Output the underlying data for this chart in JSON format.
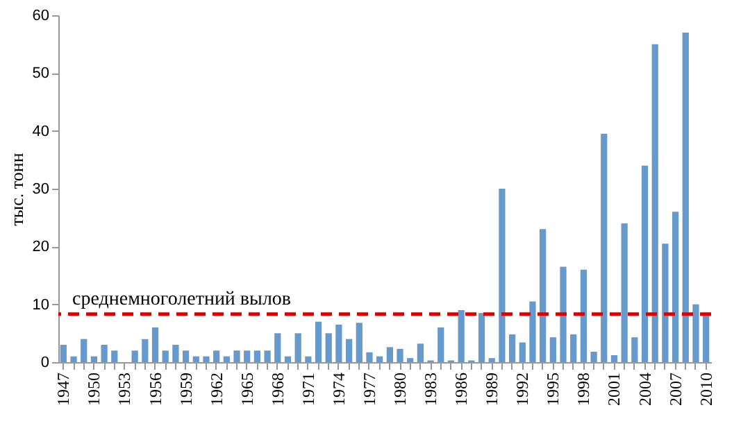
{
  "chart_data": {
    "type": "bar",
    "ylabel": "тыс. тонн",
    "categories": [
      "1947",
      null,
      null,
      "1950",
      null,
      null,
      "1953",
      null,
      null,
      "1956",
      null,
      null,
      "1959",
      null,
      null,
      "1962",
      null,
      null,
      "1965",
      null,
      null,
      "1968",
      null,
      null,
      "1971",
      null,
      null,
      "1974",
      null,
      null,
      "1977",
      null,
      null,
      "1980",
      null,
      null,
      "1983",
      null,
      null,
      "1986",
      null,
      null,
      "1989",
      null,
      null,
      "1992",
      null,
      null,
      "1995",
      null,
      null,
      "1998",
      null,
      null,
      "2001",
      null,
      null,
      "2004",
      null,
      null,
      "2007",
      null,
      null,
      "2010"
    ],
    "values": [
      3,
      1,
      4,
      1,
      3,
      2,
      0,
      2,
      4,
      6,
      2,
      3,
      2,
      1,
      1,
      2,
      1,
      2,
      2,
      2,
      2,
      5,
      1,
      5,
      1,
      7,
      5,
      6.5,
      4,
      6.8,
      1.7,
      1,
      2.6,
      2.3,
      0.7,
      3.2,
      0.3,
      6,
      0.3,
      9,
      0.3,
      8.5,
      0.7,
      30,
      4.8,
      3.4,
      10.5,
      23,
      4.3,
      16.5,
      4.8,
      16,
      1.8,
      39.5,
      1.2,
      24,
      4.3,
      34,
      55,
      20.5,
      26,
      57,
      10,
      8.5
    ],
    "color": "#6699cc",
    "ylim": [
      0,
      60
    ],
    "yticks": [
      0,
      10,
      20,
      30,
      40,
      50,
      60
    ],
    "grid": false,
    "ref_lines": [
      {
        "axis": "y",
        "value": 8.3,
        "label": "среднемноголетний вылов",
        "color": "#dd0000",
        "line_style": "dashed"
      }
    ]
  }
}
